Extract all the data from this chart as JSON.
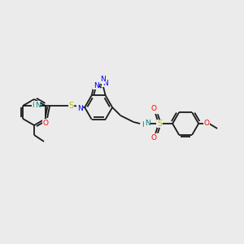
{
  "background_color": "#ebebeb",
  "bond_color": "#1a1a1a",
  "atom_colors": {
    "N": "#0000ff",
    "O": "#ff0000",
    "S": "#bbbb00",
    "NH": "#008080",
    "C": "#1a1a1a"
  },
  "figsize": [
    3.0,
    3.0
  ],
  "dpi": 100
}
